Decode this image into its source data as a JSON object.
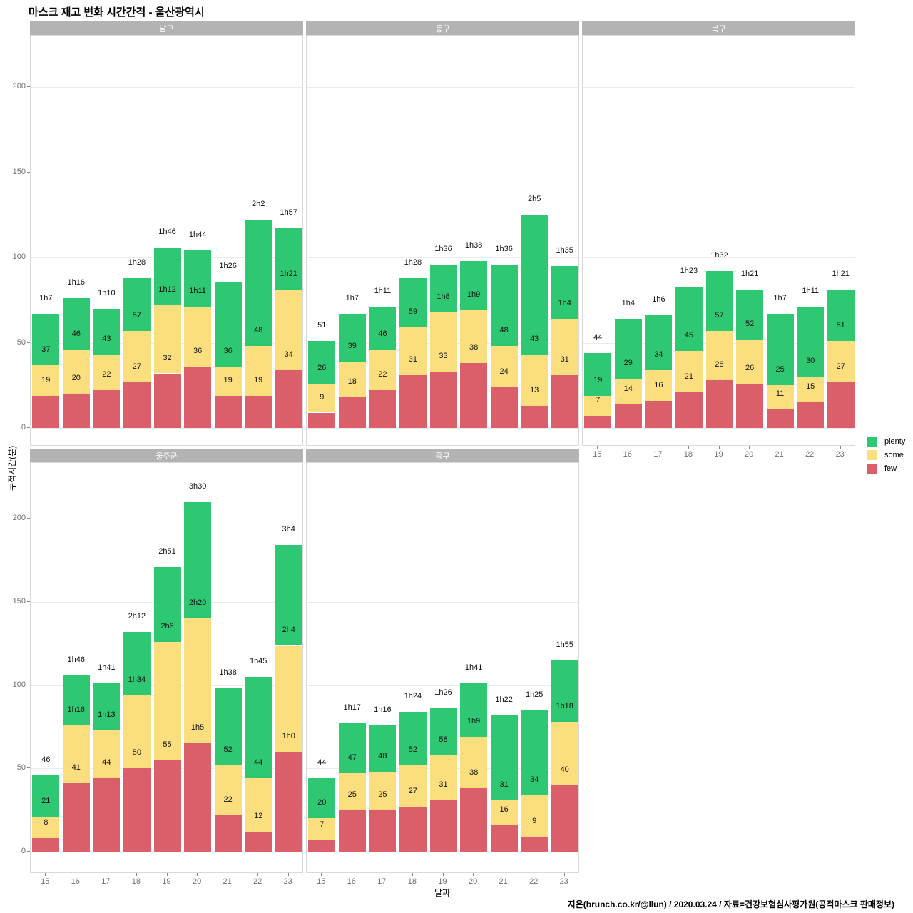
{
  "title": "마스크 재고 변화 시간간격 - 울산광역시",
  "caption": "지은(brunch.co.kr/@llun) / 2020.03.24 / 자료=건강보험심사평가원(공적마스크 판매정보)",
  "chart_data": {
    "type": "bar",
    "stacked": true,
    "title": "마스크 재고 변화 시간간격 - 울산광역시",
    "xlabel": "날짜",
    "ylabel": "누적시간(분)",
    "categories": [
      "15",
      "16",
      "17",
      "18",
      "19",
      "20",
      "21",
      "22",
      "23"
    ],
    "yticks": [
      0,
      50,
      100,
      150,
      200
    ],
    "ylim": [
      0,
      230
    ],
    "grid": true,
    "legend_position": "right",
    "legend": [
      {
        "name": "plenty",
        "color": "#2ec873"
      },
      {
        "name": "some",
        "color": "#fbde7d"
      },
      {
        "name": "few",
        "color": "#db5e6b"
      }
    ],
    "note": "bar labels are cumulative minutes: few, few+some, total; totals formatted as XhY",
    "facets": [
      {
        "title": "남구",
        "row": 0,
        "col": 0,
        "x_axis": false,
        "y_axis": true,
        "bars": [
          {
            "cum": [
              19,
              37,
              67
            ],
            "labels": [
              "19",
              "37",
              "1h7"
            ]
          },
          {
            "cum": [
              20,
              46,
              76
            ],
            "labels": [
              "20",
              "46",
              "1h16"
            ]
          },
          {
            "cum": [
              22,
              43,
              70
            ],
            "labels": [
              "22",
              "43",
              "1h10"
            ]
          },
          {
            "cum": [
              27,
              57,
              88
            ],
            "labels": [
              "27",
              "57",
              "1h28"
            ]
          },
          {
            "cum": [
              32,
              72,
              106
            ],
            "labels": [
              "32",
              "1h12",
              "1h46"
            ]
          },
          {
            "cum": [
              36,
              71,
              104
            ],
            "labels": [
              "36",
              "1h11",
              "1h44"
            ]
          },
          {
            "cum": [
              19,
              36,
              86
            ],
            "labels": [
              "19",
              "36",
              "1h26"
            ]
          },
          {
            "cum": [
              19,
              48,
              122
            ],
            "labels": [
              "19",
              "48",
              "2h2"
            ]
          },
          {
            "cum": [
              34,
              81,
              117
            ],
            "labels": [
              "34",
              "1h21",
              "1h57"
            ]
          }
        ]
      },
      {
        "title": "동구",
        "row": 0,
        "col": 1,
        "x_axis": false,
        "y_axis": false,
        "bars": [
          {
            "cum": [
              9,
              26,
              51
            ],
            "labels": [
              "9",
              "26",
              "51"
            ]
          },
          {
            "cum": [
              18,
              39,
              67
            ],
            "labels": [
              "18",
              "39",
              "1h7"
            ]
          },
          {
            "cum": [
              22,
              46,
              71
            ],
            "labels": [
              "22",
              "46",
              "1h11"
            ]
          },
          {
            "cum": [
              31,
              59,
              88
            ],
            "labels": [
              "31",
              "59",
              "1h28"
            ]
          },
          {
            "cum": [
              33,
              68,
              96
            ],
            "labels": [
              "33",
              "1h8",
              "1h36"
            ]
          },
          {
            "cum": [
              38,
              69,
              98
            ],
            "labels": [
              "38",
              "1h9",
              "1h38"
            ]
          },
          {
            "cum": [
              24,
              48,
              96
            ],
            "labels": [
              "24",
              "48",
              "1h36"
            ]
          },
          {
            "cum": [
              13,
              43,
              125
            ],
            "labels": [
              "13",
              "43",
              "2h5"
            ]
          },
          {
            "cum": [
              31,
              64,
              95
            ],
            "labels": [
              "31",
              "1h4",
              "1h35"
            ]
          }
        ]
      },
      {
        "title": "북구",
        "row": 0,
        "col": 2,
        "x_axis": true,
        "y_axis": false,
        "bars": [
          {
            "cum": [
              7,
              19,
              44
            ],
            "labels": [
              "7",
              "19",
              "44"
            ]
          },
          {
            "cum": [
              14,
              29,
              64
            ],
            "labels": [
              "14",
              "29",
              "1h4"
            ]
          },
          {
            "cum": [
              16,
              34,
              66
            ],
            "labels": [
              "16",
              "34",
              "1h6"
            ]
          },
          {
            "cum": [
              21,
              45,
              83
            ],
            "labels": [
              "21",
              "45",
              "1h23"
            ]
          },
          {
            "cum": [
              28,
              57,
              92
            ],
            "labels": [
              "28",
              "57",
              "1h32"
            ]
          },
          {
            "cum": [
              26,
              52,
              81
            ],
            "labels": [
              "26",
              "52",
              "1h21"
            ]
          },
          {
            "cum": [
              11,
              25,
              67
            ],
            "labels": [
              "11",
              "25",
              "1h7"
            ]
          },
          {
            "cum": [
              15,
              30,
              71
            ],
            "labels": [
              "15",
              "30",
              "1h11"
            ]
          },
          {
            "cum": [
              27,
              51,
              81
            ],
            "labels": [
              "27",
              "51",
              "1h21"
            ]
          }
        ]
      },
      {
        "title": "울주군",
        "row": 1,
        "col": 0,
        "x_axis": true,
        "y_axis": true,
        "bars": [
          {
            "cum": [
              8,
              21,
              46
            ],
            "labels": [
              "8",
              "21",
              "46"
            ]
          },
          {
            "cum": [
              41,
              76,
              106
            ],
            "labels": [
              "41",
              "1h16",
              "1h46"
            ]
          },
          {
            "cum": [
              44,
              73,
              101
            ],
            "labels": [
              "44",
              "1h13",
              "1h41"
            ]
          },
          {
            "cum": [
              50,
              94,
              132
            ],
            "labels": [
              "50",
              "1h34",
              "2h12"
            ]
          },
          {
            "cum": [
              55,
              126,
              171
            ],
            "labels": [
              "55",
              "2h6",
              "2h51"
            ]
          },
          {
            "cum": [
              65,
              140,
              210
            ],
            "labels": [
              "1h5",
              "2h20",
              "3h30"
            ]
          },
          {
            "cum": [
              22,
              52,
              98
            ],
            "labels": [
              "22",
              "52",
              "1h38"
            ]
          },
          {
            "cum": [
              12,
              44,
              105
            ],
            "labels": [
              "12",
              "44",
              "1h45"
            ]
          },
          {
            "cum": [
              60,
              124,
              184
            ],
            "labels": [
              "1h0",
              "2h4",
              "3h4"
            ]
          }
        ]
      },
      {
        "title": "중구",
        "row": 1,
        "col": 1,
        "x_axis": true,
        "y_axis": false,
        "bars": [
          {
            "cum": [
              7,
              20,
              44
            ],
            "labels": [
              "7",
              "20",
              "44"
            ]
          },
          {
            "cum": [
              25,
              47,
              77
            ],
            "labels": [
              "25",
              "47",
              "1h17"
            ]
          },
          {
            "cum": [
              25,
              48,
              76
            ],
            "labels": [
              "25",
              "48",
              "1h16"
            ]
          },
          {
            "cum": [
              27,
              52,
              84
            ],
            "labels": [
              "27",
              "52",
              "1h24"
            ]
          },
          {
            "cum": [
              31,
              58,
              86
            ],
            "labels": [
              "31",
              "58",
              "1h26"
            ]
          },
          {
            "cum": [
              38,
              69,
              101
            ],
            "labels": [
              "38",
              "1h9",
              "1h41"
            ]
          },
          {
            "cum": [
              16,
              31,
              82
            ],
            "labels": [
              "16",
              "31",
              "1h22"
            ]
          },
          {
            "cum": [
              9,
              34,
              85
            ],
            "labels": [
              "9",
              "34",
              "1h25"
            ]
          },
          {
            "cum": [
              40,
              78,
              115
            ],
            "labels": [
              "40",
              "1h18",
              "1h55"
            ]
          }
        ]
      }
    ]
  },
  "colors": {
    "plenty": "#2ec873",
    "some": "#fbde7d",
    "few": "#db5e6b",
    "strip_bg": "#b3b3b3",
    "strip_text": "#ffffff",
    "grid": "#ebebeb",
    "panel_border": "#d9d9d9",
    "tick_text": "#6f6f6f",
    "bar_label": "#111111"
  }
}
